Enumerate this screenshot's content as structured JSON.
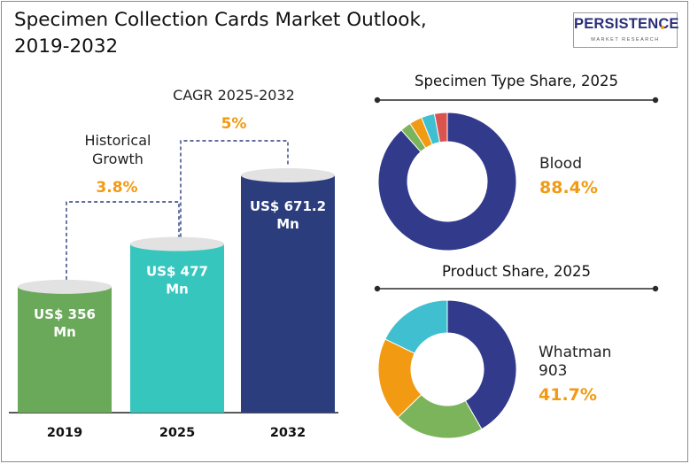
{
  "title_line1": "Specimen Collection Cards Market Outlook,",
  "title_line2": "2019-2032",
  "logo": {
    "name": "PERSISTENCE",
    "tagline": "MARKET RESEARCH"
  },
  "colors": {
    "green": "#6aa85a",
    "teal": "#37c6be",
    "navy": "#2b3d7c",
    "orange": "#f29a12",
    "violet": "#323a8c",
    "lightgreen": "#7bb45a",
    "sky": "#3fbfd0",
    "red": "#d9534f"
  },
  "chart_data": [
    {
      "type": "bar",
      "categories": [
        "2019",
        "2025",
        "2032"
      ],
      "values": [
        356,
        477,
        671.2
      ],
      "value_labels": [
        "US$ 356\nMn",
        "US$ 477\nMn",
        "US$ 671.2\nMn"
      ],
      "annotations": [
        {
          "label_lines": [
            "Historical",
            "Growth"
          ],
          "value": "3.8%"
        },
        {
          "label_lines": [
            "CAGR 2025-2032"
          ],
          "value": "5%"
        }
      ]
    },
    {
      "type": "pie",
      "title": "Specimen Type Share, 2025",
      "highlight_label": "Blood",
      "highlight_value": "88.4%",
      "slices": [
        {
          "value": 88.4,
          "color": "#323a8c"
        },
        {
          "value": 2.5,
          "color": "#7bb45a"
        },
        {
          "value": 3.0,
          "color": "#f29a12"
        },
        {
          "value": 3.1,
          "color": "#3fbfd0"
        },
        {
          "value": 3.0,
          "color": "#d9534f"
        }
      ]
    },
    {
      "type": "pie",
      "title": "Product Share, 2025",
      "highlight_label_lines": [
        "Whatman",
        "903"
      ],
      "highlight_value": "41.7%",
      "slices": [
        {
          "value": 41.7,
          "color": "#323a8c"
        },
        {
          "value": 21.0,
          "color": "#7bb45a"
        },
        {
          "value": 19.5,
          "color": "#f29a12"
        },
        {
          "value": 17.8,
          "color": "#3fbfd0"
        }
      ]
    }
  ]
}
